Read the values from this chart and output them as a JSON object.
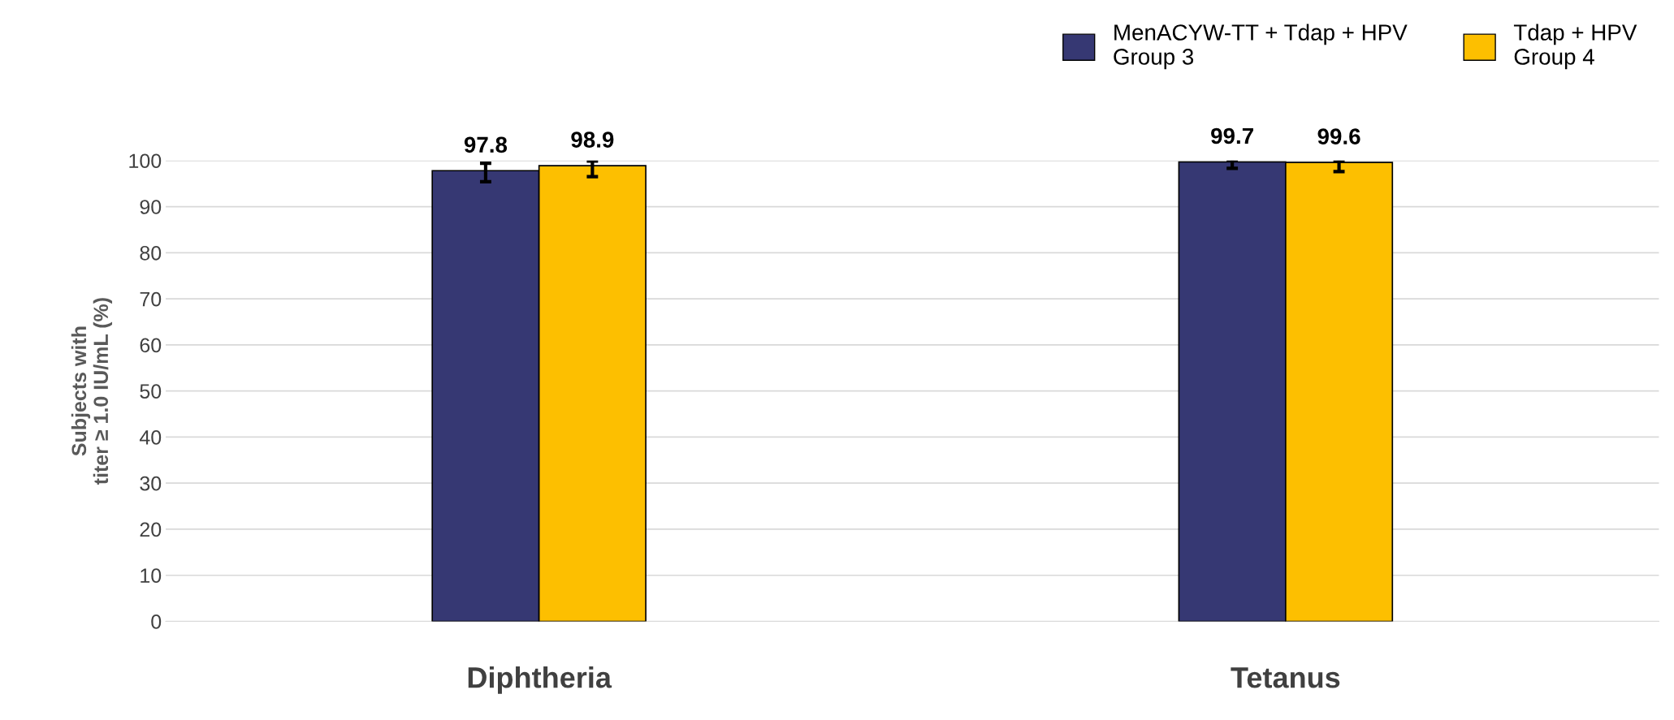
{
  "chart_data": {
    "type": "bar",
    "ylabel": "Subjects with\ntiter ≥ 1.0 IU/mL (%)",
    "categories": [
      "Diphtheria",
      "Tetanus"
    ],
    "series": [
      {
        "name": "MenACYW-TT + Tdap + HPV\nGroup 3",
        "color": "#363873",
        "values": [
          97.8,
          99.7
        ],
        "errors": [
          [
            95.4,
            99.4
          ],
          [
            98.3,
            100.0
          ]
        ]
      },
      {
        "name": "Tdap + HPV\nGroup 4",
        "color": "#fdbf00",
        "values": [
          98.9,
          99.6
        ],
        "errors": [
          [
            96.5,
            99.9
          ],
          [
            97.6,
            100.0
          ]
        ]
      }
    ],
    "ylim": [
      0,
      100
    ],
    "yticks": [
      0,
      10,
      20,
      30,
      40,
      50,
      60,
      70,
      80,
      90,
      100
    ],
    "grid": "y",
    "legend": "top right",
    "data_labels": true
  }
}
